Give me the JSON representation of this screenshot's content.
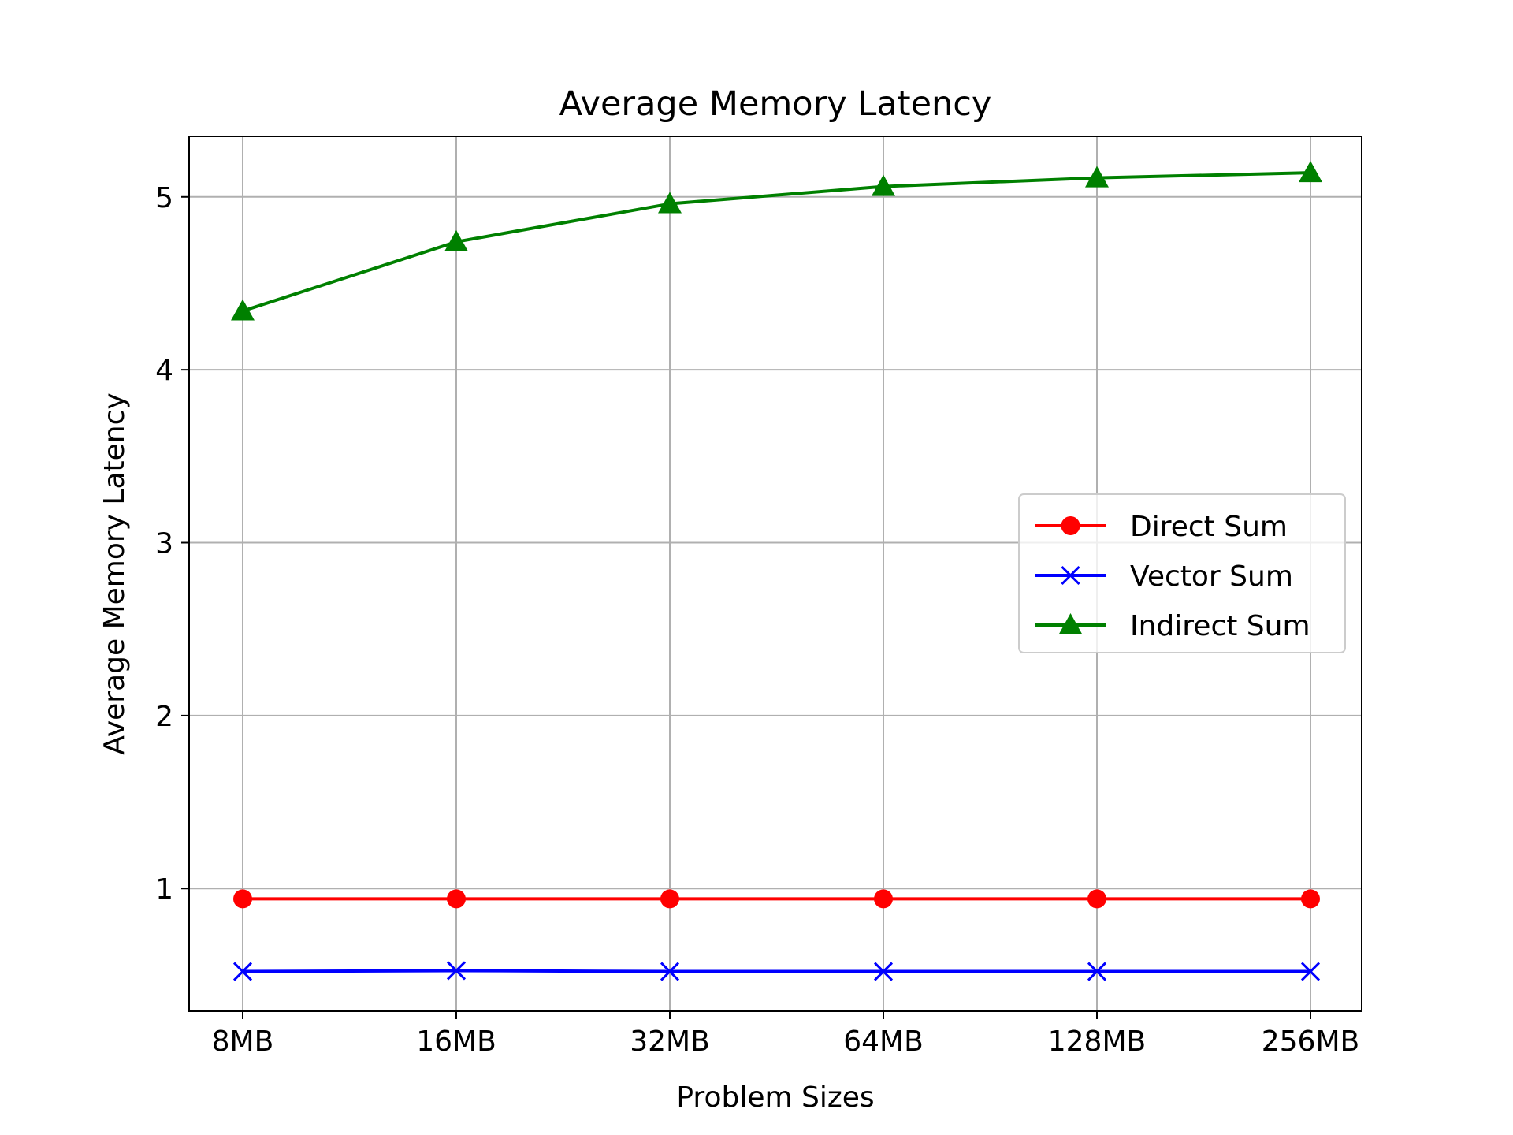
{
  "chart_data": {
    "type": "line",
    "title": "Average Memory Latency",
    "xlabel": "Problem Sizes",
    "ylabel": "Average Memory Latency",
    "categories": [
      "8MB",
      "16MB",
      "32MB",
      "64MB",
      "128MB",
      "256MB"
    ],
    "ylim": [
      0.29,
      5.35
    ],
    "yticks": [
      1,
      2,
      3,
      4,
      5
    ],
    "grid": true,
    "legend_position": "center-right",
    "series": [
      {
        "name": "Direct Sum",
        "color": "#ff0000",
        "marker": "circle",
        "values": [
          0.94,
          0.94,
          0.94,
          0.94,
          0.94,
          0.94
        ]
      },
      {
        "name": "Vector Sum",
        "color": "#0000ff",
        "marker": "x",
        "values": [
          0.52,
          0.525,
          0.52,
          0.52,
          0.52,
          0.52
        ]
      },
      {
        "name": "Indirect Sum",
        "color": "#008000",
        "marker": "triangle",
        "values": [
          4.34,
          4.74,
          4.96,
          5.06,
          5.11,
          5.14
        ]
      }
    ]
  }
}
